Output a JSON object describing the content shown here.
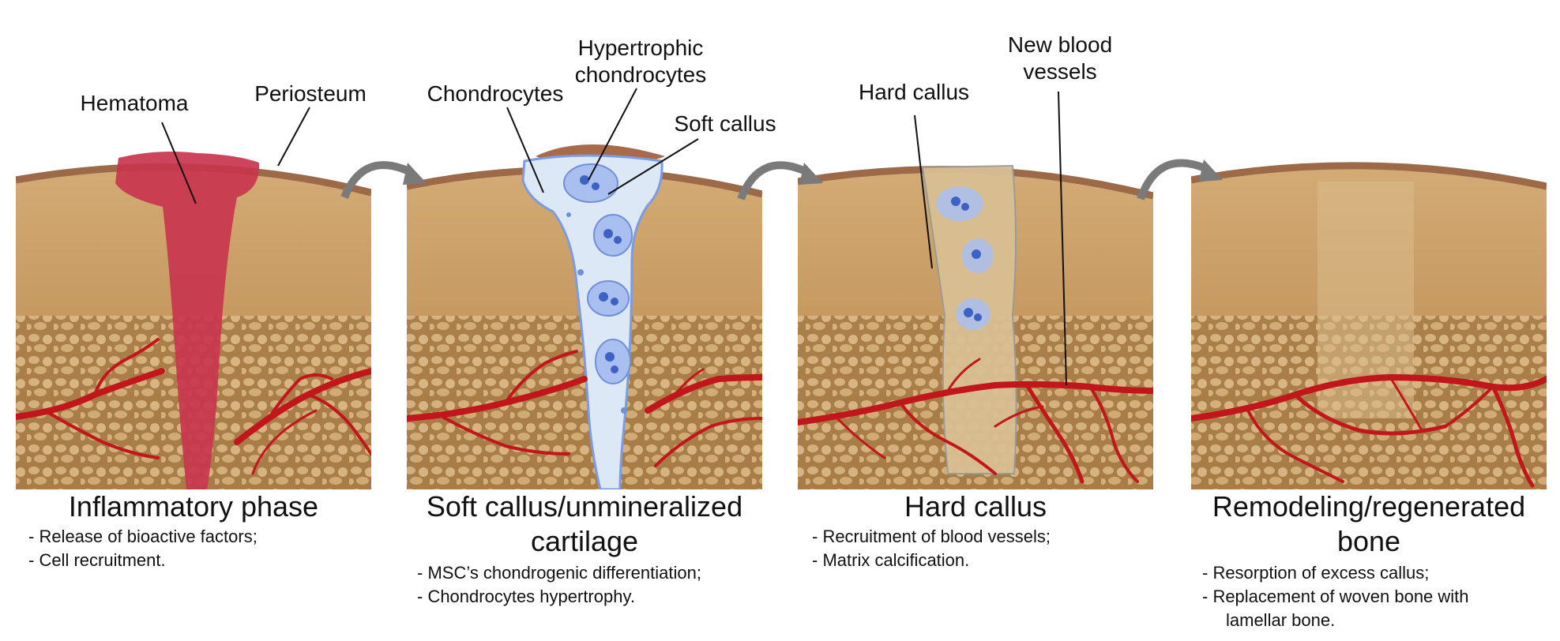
{
  "labels": {
    "hematoma": "Hematoma",
    "periosteum": "Periosteum",
    "chondrocytes": "Chondrocytes",
    "hypertrophic_line1": "Hypertrophic",
    "hypertrophic_line2": "chondrocytes",
    "soft_callus": "Soft callus",
    "hard_callus": "Hard callus",
    "new_vessels_line1": "New blood",
    "new_vessels_line2": "vessels"
  },
  "phases": [
    {
      "title_line1": "Inflammatory phase",
      "title_line2": "",
      "items": [
        "- Release of bioactive factors;",
        "- Cell recruitment."
      ]
    },
    {
      "title_line1": "Soft callus/unmineralized",
      "title_line2": "cartilage",
      "items": [
        "- MSC’s chondrogenic differentiation;",
        "- Chondrocytes hypertrophy."
      ]
    },
    {
      "title_line1": "Hard callus",
      "title_line2": "",
      "items": [
        "- Recruitment of blood vessels;",
        "- Matrix calcification."
      ]
    },
    {
      "title_line1": "Remodeling/regenerated",
      "title_line2": "bone",
      "items": [
        "-    Resorption of excess callus;",
        "-    Replacement of woven bone with lamellar bone."
      ]
    }
  ],
  "colors": {
    "bone_upper": "#caa06a",
    "bone_lower": "#b88a50",
    "periosteum": "#9c6a48",
    "hematoma": "#c9354e",
    "cartilage": "#dce8f5",
    "cell": "#6f8fd8",
    "vessel": "#c0161c",
    "arrow": "#7a7a7a"
  }
}
